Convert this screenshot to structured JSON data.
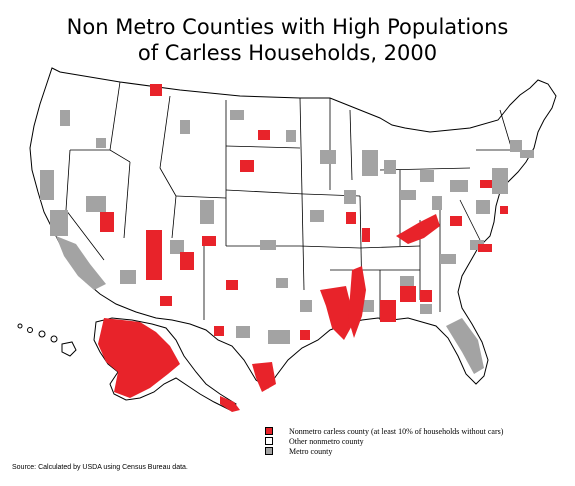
{
  "title": {
    "line1": "Non Metro Counties with High Populations",
    "line2": "of Carless Households, 2000"
  },
  "legend": [
    {
      "label": "Nonmetro carless county (at least 10% of households without cars)",
      "color": "#e8232a"
    },
    {
      "label": "Other nonmetro county",
      "color": "#ffffff"
    },
    {
      "label": "Metro county",
      "color": "#a3a3a3"
    }
  ],
  "source": "Source:  Calculated by USDA using Census Bureau data.",
  "colors": {
    "carless": "#e8232a",
    "other": "#ffffff",
    "metro": "#a3a3a3",
    "border": "#000000"
  }
}
